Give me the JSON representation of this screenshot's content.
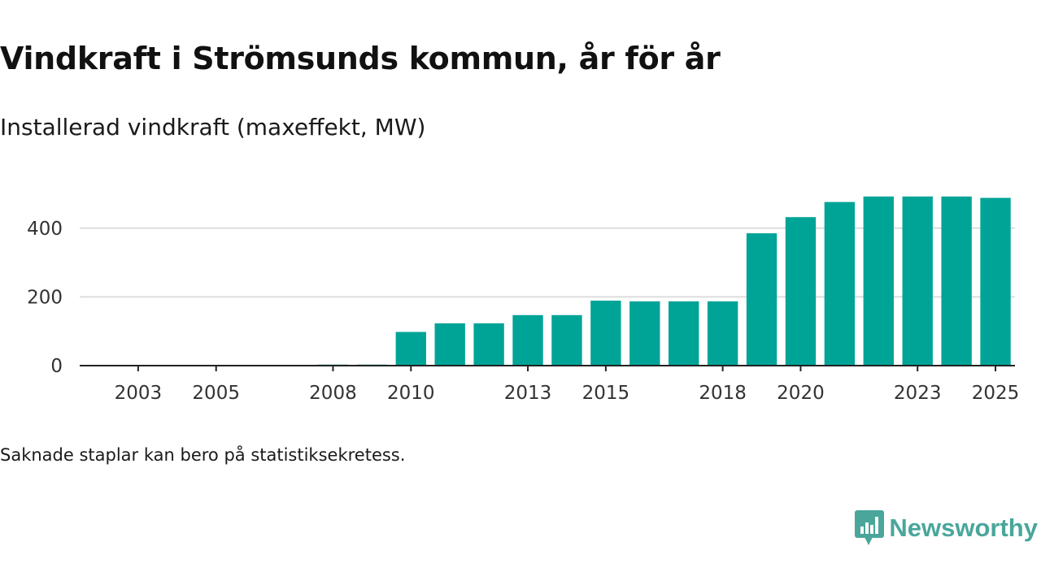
{
  "title": "Vindkraft i Strömsunds kommun, år för år",
  "subtitle": "Installerad vindkraft (maxeffekt, MW)",
  "footnote": "Saknade staplar kan bero på statistiksekretess.",
  "brand": {
    "name": "Newsworthy",
    "color": "#4aa69b",
    "icon": "bar-chart-speech-bubble-icon"
  },
  "colors": {
    "bar": "#00a497",
    "grid": "#dddddd",
    "axis": "#222222"
  },
  "chart_data": {
    "type": "bar",
    "title": "Vindkraft i Strömsunds kommun, år för år",
    "ylabel": "Installerad vindkraft (maxeffekt, MW)",
    "xlabel": "",
    "categories": [
      "2002",
      "2003",
      "2004",
      "2005",
      "2006",
      "2007",
      "2008",
      "2009",
      "2010",
      "2011",
      "2012",
      "2013",
      "2014",
      "2015",
      "2016",
      "2017",
      "2018",
      "2019",
      "2020",
      "2021",
      "2022",
      "2023",
      "2024",
      "2025"
    ],
    "values": [
      0,
      0,
      0,
      0,
      0,
      0,
      3,
      3,
      98,
      123,
      123,
      147,
      147,
      189,
      187,
      187,
      187,
      385,
      432,
      476,
      492,
      492,
      492,
      488
    ],
    "x_tick_labels": [
      "2003",
      "2005",
      "2008",
      "2010",
      "2013",
      "2015",
      "2018",
      "2020",
      "2023",
      "2025"
    ],
    "y_ticks": [
      0,
      200,
      400
    ],
    "ylim": [
      0,
      520
    ],
    "grid": true,
    "legend": "none"
  }
}
